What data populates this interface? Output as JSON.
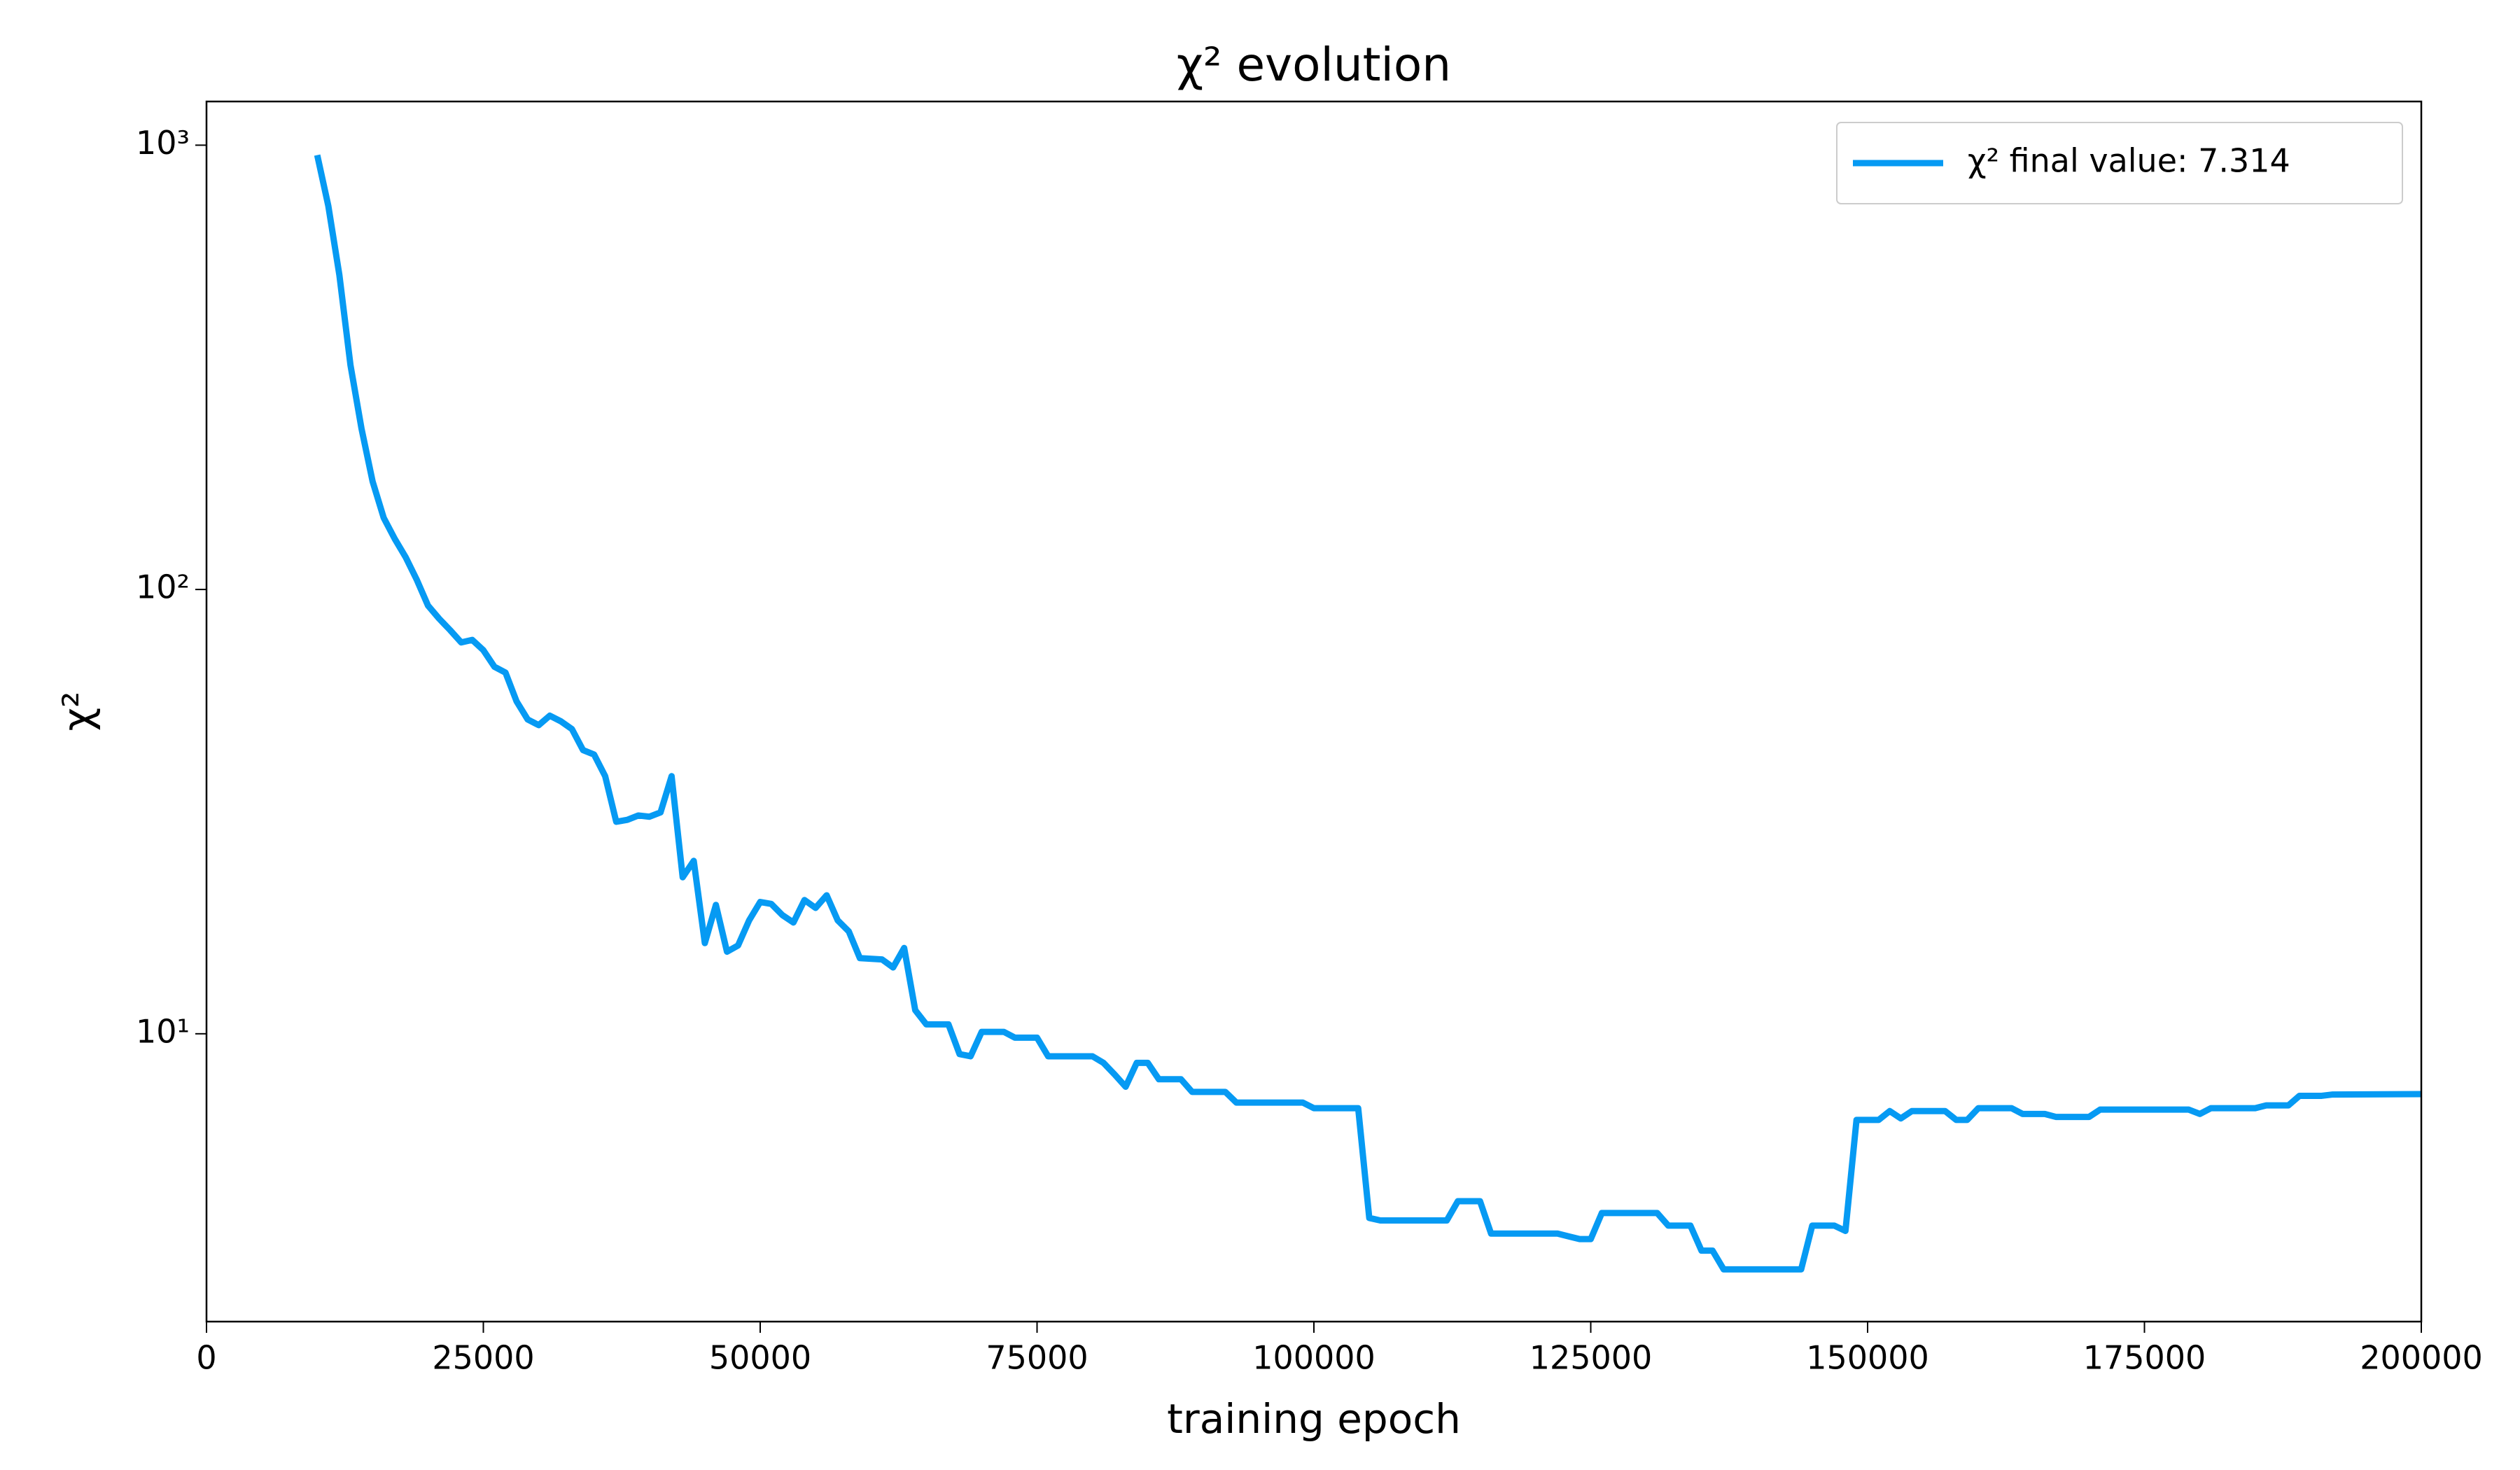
{
  "chart_data": {
    "type": "line",
    "title": "χ² evolution",
    "xlabel": "training epoch",
    "ylabel": "χ²",
    "x": [
      10000,
      11000,
      12000,
      13000,
      14000,
      15000,
      16000,
      17000,
      18000,
      19000,
      20000,
      21000,
      22000,
      23000,
      24000,
      25000,
      26000,
      27000,
      28000,
      29000,
      30000,
      31000,
      32000,
      33000,
      34000,
      35000,
      36000,
      37000,
      38000,
      39000,
      40000,
      41000,
      42000,
      43000,
      44000,
      45000,
      46000,
      47000,
      48000,
      49000,
      50000,
      51000,
      52000,
      53000,
      54000,
      55000,
      56000,
      57000,
      58000,
      59000,
      61000,
      62000,
      63000,
      64000,
      65000,
      67000,
      68000,
      69000,
      70000,
      72000,
      73000,
      75000,
      76000,
      80000,
      81000,
      82000,
      83000,
      84000,
      85000,
      86000,
      88000,
      89000,
      92000,
      93000,
      99000,
      100000,
      104000,
      105000,
      106000,
      112000,
      113000,
      115000,
      116000,
      122000,
      123000,
      124000,
      125000,
      126000,
      131000,
      132000,
      134000,
      135000,
      136000,
      137000,
      144000,
      145000,
      147000,
      148000,
      149000,
      151000,
      152000,
      153000,
      154000,
      157000,
      158000,
      159000,
      160000,
      163000,
      164000,
      166000,
      167000,
      170000,
      171000,
      179000,
      180000,
      181000,
      185000,
      186000,
      188000,
      189000,
      191000,
      192000,
      200000
    ],
    "series": [
      {
        "name": "χ² final value: 7.314",
        "color": "#069af3",
        "values": [
          950,
          730,
          510,
          320,
          230,
          175,
          145,
          130,
          118,
          105,
          92,
          86,
          81,
          76,
          77,
          73,
          67,
          65,
          56,
          51,
          49.5,
          52,
          50.5,
          48.5,
          43.5,
          42.5,
          38,
          30,
          30.3,
          31,
          30.8,
          31.5,
          38,
          22.5,
          24.5,
          16,
          19.5,
          15.3,
          15.8,
          18,
          19.8,
          19.6,
          18.5,
          17.8,
          20,
          19.2,
          20.5,
          18,
          17,
          14.8,
          14.7,
          14.1,
          15.6,
          11.3,
          10.5,
          10.5,
          9,
          8.9,
          10.1,
          10.1,
          9.8,
          9.8,
          8.9,
          8.9,
          8.6,
          8.1,
          7.6,
          8.6,
          8.6,
          7.9,
          7.9,
          7.4,
          7.4,
          7,
          7,
          6.8,
          6.8,
          3.85,
          3.8,
          3.8,
          4.2,
          4.2,
          3.55,
          3.55,
          3.5,
          3.45,
          3.45,
          3.95,
          3.95,
          3.7,
          3.7,
          3.25,
          3.25,
          2.95,
          2.95,
          3.7,
          3.7,
          3.6,
          6.4,
          6.4,
          6.7,
          6.45,
          6.7,
          6.7,
          6.4,
          6.4,
          6.8,
          6.8,
          6.6,
          6.6,
          6.5,
          6.5,
          6.75,
          6.75,
          6.6,
          6.8,
          6.8,
          6.9,
          6.9,
          7.25,
          7.25,
          7.3,
          7.314
        ]
      }
    ],
    "xlim": [
      0,
      200000
    ],
    "xticks": [
      0,
      25000,
      50000,
      75000,
      100000,
      125000,
      150000,
      175000,
      200000
    ],
    "ylim": [
      2.25,
      1254
    ],
    "yscale": "log",
    "yticks": [
      {
        "value": 10,
        "label": "10¹"
      },
      {
        "value": 100,
        "label": "10²"
      },
      {
        "value": 1000,
        "label": "10³"
      }
    ],
    "legend": "upper right"
  }
}
